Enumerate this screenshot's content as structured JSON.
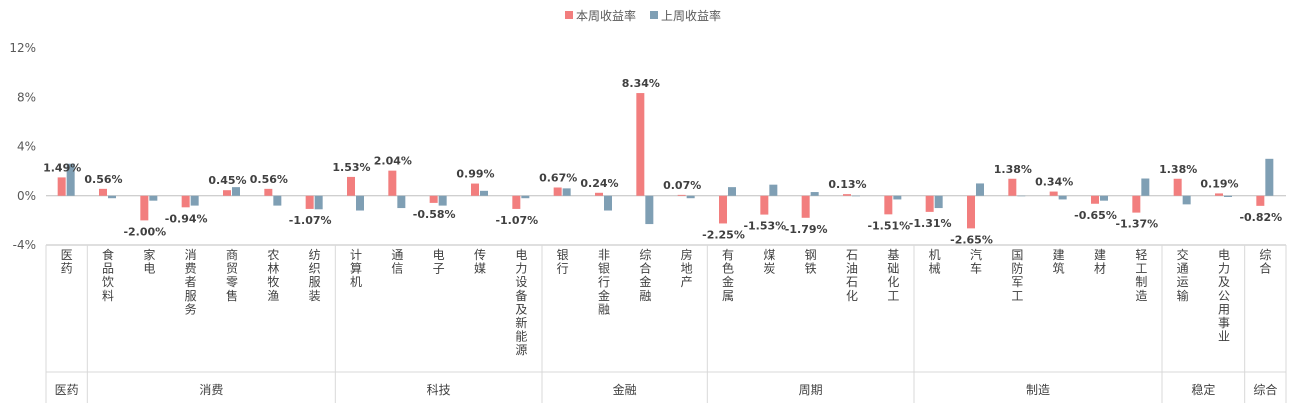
{
  "chart_data": {
    "type": "bar",
    "legend_position": "top-center",
    "grid": false,
    "ylim": [
      -4,
      12
    ],
    "yticks": [
      "12%",
      "8%",
      "4%",
      "0%",
      "-4%"
    ],
    "ytick_values": [
      12,
      8,
      4,
      0,
      -4
    ],
    "series": [
      {
        "name": "本周收益率",
        "color": "#F27E7E",
        "values": [
          1.49,
          0.56,
          -2.0,
          -0.94,
          0.45,
          0.56,
          -1.07,
          1.53,
          2.04,
          -0.58,
          0.99,
          -1.07,
          0.67,
          0.24,
          8.34,
          0.07,
          -2.25,
          -1.53,
          -1.79,
          0.13,
          -1.51,
          -1.31,
          -2.65,
          1.38,
          0.34,
          -0.65,
          -1.37,
          1.38,
          0.19,
          -0.82
        ],
        "labels": [
          "1.49%",
          "0.56%",
          "-2.00%",
          "-0.94%",
          "0.45%",
          "0.56%",
          "-1.07%",
          "1.53%",
          "2.04%",
          "-0.58%",
          "0.99%",
          "-1.07%",
          "0.67%",
          "0.24%",
          "8.34%",
          "0.07%",
          "-2.25%",
          "-1.53%",
          "-1.79%",
          "0.13%",
          "-1.51%",
          "-1.31%",
          "-2.65%",
          "1.38%",
          "0.34%",
          "-0.65%",
          "-1.37%",
          "1.38%",
          "0.19%",
          "-0.82%"
        ]
      },
      {
        "name": "上周收益率",
        "color": "#7F9FB4",
        "values": [
          2.6,
          -0.2,
          -0.4,
          -0.8,
          0.7,
          -0.8,
          -1.1,
          -1.2,
          -1.0,
          -0.8,
          0.4,
          -0.2,
          0.6,
          -1.2,
          -2.3,
          -0.2,
          0.7,
          0.9,
          0.3,
          0.0,
          -0.3,
          -1.0,
          1.0,
          0.0,
          -0.3,
          -0.4,
          1.4,
          -0.7,
          -0.1,
          3.0
        ]
      }
    ],
    "categories": [
      "医药",
      "食品饮料",
      "家电",
      "消费者服务",
      "商贸零售",
      "农林牧渔",
      "纺织服装",
      "计算机",
      "通信",
      "电子",
      "传媒",
      "电力设备及新能源",
      "银行",
      "非银行金融",
      "综合金融",
      "房地产",
      "有色金属",
      "煤炭",
      "钢铁",
      "石油石化",
      "基础化工",
      "机械",
      "汽车",
      "国防军工",
      "建筑",
      "建材",
      "轻工制造",
      "交通运输",
      "电力及公用事业",
      "综合"
    ],
    "groups": [
      {
        "name": "医药",
        "start": 0,
        "end": 0
      },
      {
        "name": "消费",
        "start": 1,
        "end": 6
      },
      {
        "name": "科技",
        "start": 7,
        "end": 11
      },
      {
        "name": "金融",
        "start": 12,
        "end": 15
      },
      {
        "name": "周期",
        "start": 16,
        "end": 20
      },
      {
        "name": "制造",
        "start": 21,
        "end": 26
      },
      {
        "name": "稳定",
        "start": 27,
        "end": 28
      },
      {
        "name": "综合",
        "start": 29,
        "end": 29
      }
    ]
  }
}
